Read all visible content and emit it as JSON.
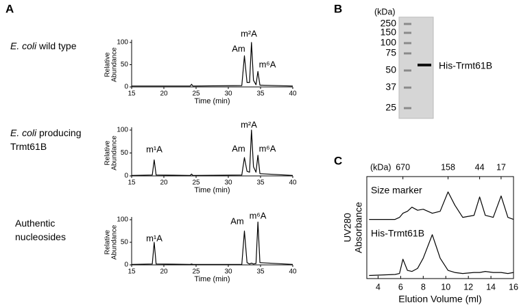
{
  "panels": [
    "A",
    "B",
    "C"
  ],
  "chart_data": [
    {
      "type": "line",
      "sample": {
        "species": "E. coli",
        "lines": [
          "wild type"
        ]
      },
      "ylabel": [
        "Relative",
        "Abundance"
      ],
      "xlabel": "Time (min)",
      "xlim": [
        15,
        40
      ],
      "xticks": [
        15,
        20,
        25,
        30,
        35,
        40
      ],
      "ylim": [
        0,
        100
      ],
      "yticks": [
        0,
        50,
        100
      ],
      "annotations": [
        "Am",
        "m²A",
        "m⁶A"
      ],
      "x": [
        15,
        18.2,
        18.5,
        18.8,
        24.1,
        24.3,
        24.5,
        32.1,
        32.5,
        32.9,
        33.3,
        33.6,
        33.9,
        34.3,
        34.6,
        34.9,
        40
      ],
      "series": [
        {
          "color": "#000000",
          "values": [
            2,
            2,
            2,
            2,
            2,
            6,
            2,
            3,
            70,
            10,
            10,
            100,
            15,
            5,
            35,
            4,
            2
          ]
        }
      ]
    },
    {
      "type": "line",
      "sample": {
        "species": "E. coli",
        "lines": [
          "producing",
          "Trmt61B"
        ]
      },
      "ylabel": [
        "Relative",
        "Abundance"
      ],
      "xlabel": "Time (min)",
      "xlim": [
        15,
        40
      ],
      "xticks": [
        15,
        20,
        25,
        30,
        35,
        40
      ],
      "ylim": [
        0,
        100
      ],
      "yticks": [
        0,
        50,
        100
      ],
      "annotations": [
        "m¹A",
        "Am",
        "m²A",
        "m⁶A"
      ],
      "x": [
        15,
        18.2,
        18.5,
        18.8,
        24.1,
        24.3,
        24.5,
        32.1,
        32.5,
        32.9,
        33.3,
        33.6,
        33.9,
        34.3,
        34.6,
        34.9,
        40
      ],
      "series": [
        {
          "color": "#000000",
          "values": [
            1,
            2,
            35,
            2,
            1,
            4,
            1,
            2,
            40,
            10,
            8,
            100,
            20,
            8,
            45,
            5,
            1
          ]
        }
      ]
    },
    {
      "type": "line",
      "sample": {
        "lines": [
          "Authentic",
          "nucleosides"
        ]
      },
      "ylabel": [
        "Relative",
        "Abundance"
      ],
      "xlabel": "Time (min)",
      "xlim": [
        15,
        40
      ],
      "xticks": [
        15,
        20,
        25,
        30,
        35,
        40
      ],
      "ylim": [
        0,
        100
      ],
      "yticks": [
        0,
        50,
        100
      ],
      "annotations": [
        "m¹A",
        "Am",
        "m⁶A"
      ],
      "x": [
        15,
        18.2,
        18.5,
        18.8,
        24.1,
        24.3,
        24.5,
        32.1,
        32.5,
        32.9,
        33.3,
        33.6,
        33.9,
        34.3,
        34.6,
        34.9,
        40
      ],
      "series": [
        {
          "color": "#000000",
          "values": [
            1,
            2,
            50,
            2,
            1,
            2,
            1,
            1,
            75,
            5,
            2,
            4,
            2,
            3,
            95,
            5,
            1
          ]
        }
      ]
    },
    {
      "type": "line",
      "ylabel": [
        "UV280",
        "Absorbance"
      ],
      "xlabel": "Elution Volume (ml)",
      "xlim": [
        3,
        16
      ],
      "xticks": [
        4,
        6,
        8,
        10,
        12,
        14,
        16
      ],
      "ylim": [
        0,
        100
      ],
      "top_axis_label": "(kDa)",
      "top_ticks": [
        {
          "value": 6.2,
          "label": "670"
        },
        {
          "value": 10.2,
          "label": "158"
        },
        {
          "value": 13,
          "label": "44"
        },
        {
          "value": 14.9,
          "label": "17"
        }
      ],
      "x": [
        3.2,
        5.5,
        5.9,
        6.2,
        6.6,
        7,
        7.5,
        8,
        8.8,
        9.5,
        10.2,
        10.8,
        11.5,
        12.5,
        13,
        13.5,
        14.2,
        14.9,
        15.5,
        16
      ],
      "series": [
        {
          "name": "Size marker",
          "color": "#000000",
          "values": [
            58,
            58,
            60,
            64,
            66,
            70,
            67,
            68,
            64,
            66,
            85,
            72,
            60,
            62,
            80,
            62,
            60,
            81,
            60,
            58
          ]
        },
        {
          "name": "His-Trmt61B",
          "color": "#000000",
          "values": [
            3,
            4,
            5,
            19,
            8,
            7,
            10,
            20,
            43,
            20,
            8,
            6,
            5,
            6,
            6,
            7,
            6,
            6,
            5,
            6
          ]
        }
      ]
    }
  ],
  "gel": {
    "unit": "(kDa)",
    "markers": [
      250,
      150,
      100,
      75,
      50,
      37,
      25
    ],
    "band_label": "His-Trmt61B"
  }
}
